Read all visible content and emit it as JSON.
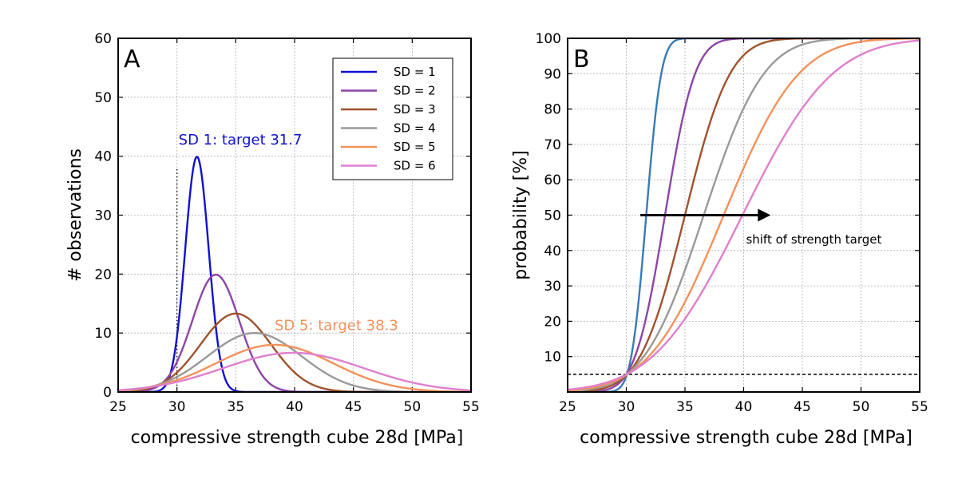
{
  "colors": {
    "sd1_A": "#1010d0",
    "sd1_B": "#3a7ab5",
    "sd2": "#8e44a8",
    "sd3": "#a0522d",
    "sd4": "#999999",
    "sd5": "#f4915a",
    "sd6": "#e07fcd"
  },
  "chart_data": [
    {
      "type": "line",
      "panel_label": "A",
      "title": "",
      "xlabel": "compressive strength cube 28d [MPa]",
      "ylabel": "# observations",
      "xlim": [
        25,
        55
      ],
      "ylim": [
        0,
        60
      ],
      "xticks": [
        25,
        30,
        35,
        40,
        45,
        50,
        55
      ],
      "yticks": [
        0,
        10,
        20,
        30,
        40,
        50,
        60
      ],
      "grid": true,
      "legend_position": "top-right",
      "series": [
        {
          "name": "SD = 1",
          "sd": 1,
          "mean": 31.7,
          "peak": 39.9,
          "color_key": "sd1_A"
        },
        {
          "name": "SD = 2",
          "sd": 2,
          "mean": 33.3,
          "peak": 19.9,
          "color_key": "sd2"
        },
        {
          "name": "SD = 3",
          "sd": 3,
          "mean": 35.0,
          "peak": 13.3,
          "color_key": "sd3"
        },
        {
          "name": "SD = 4",
          "sd": 4,
          "mean": 36.6,
          "peak": 10.0,
          "color_key": "sd4"
        },
        {
          "name": "SD = 5",
          "sd": 5,
          "mean": 38.3,
          "peak": 8.0,
          "color_key": "sd5"
        },
        {
          "name": "SD = 6",
          "sd": 6,
          "mean": 39.9,
          "peak": 6.65,
          "color_key": "sd6"
        }
      ],
      "reference_line": {
        "x": 30,
        "style": "dotted"
      },
      "annotations": [
        {
          "text": "SD 1: target 31.7",
          "color_key": "sd1_A",
          "x": 30,
          "y": 42
        },
        {
          "text": "SD 5: target 38.3",
          "color_key": "sd5",
          "x": 38.3,
          "y": 10.5
        }
      ]
    },
    {
      "type": "line",
      "panel_label": "B",
      "title": "",
      "xlabel": "compressive strength cube 28d [MPa]",
      "ylabel": "probability [%]",
      "xlim": [
        25,
        55
      ],
      "ylim": [
        0,
        100
      ],
      "xticks": [
        25,
        30,
        35,
        40,
        45,
        50,
        55
      ],
      "yticks": [
        10,
        20,
        30,
        40,
        50,
        60,
        70,
        80,
        90,
        100
      ],
      "grid": true,
      "series": [
        {
          "name": "SD = 1",
          "sd": 1,
          "mean": 31.7,
          "color_key": "sd1_B"
        },
        {
          "name": "SD = 2",
          "sd": 2,
          "mean": 33.3,
          "color_key": "sd2"
        },
        {
          "name": "SD = 3",
          "sd": 3,
          "mean": 35.0,
          "color_key": "sd3"
        },
        {
          "name": "SD = 4",
          "sd": 4,
          "mean": 36.6,
          "color_key": "sd4"
        },
        {
          "name": "SD = 5",
          "sd": 5,
          "mean": 38.3,
          "color_key": "sd5"
        },
        {
          "name": "SD = 6",
          "sd": 6,
          "mean": 39.9,
          "color_key": "sd6"
        }
      ],
      "reference_line": {
        "y": 5,
        "style": "dashed"
      },
      "arrow": {
        "from": [
          31.2,
          50
        ],
        "to": [
          42.3,
          50
        ]
      },
      "annotations": [
        {
          "text": "shift of strength target",
          "x": 40.2,
          "y": 42
        }
      ]
    }
  ]
}
